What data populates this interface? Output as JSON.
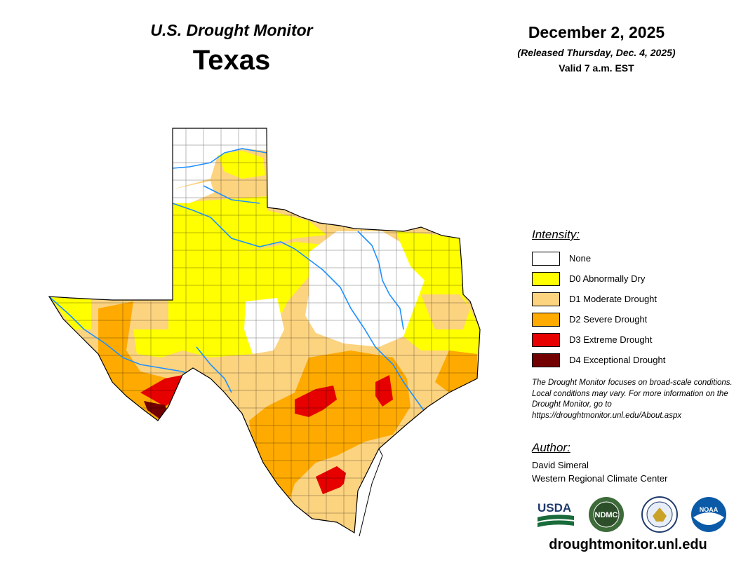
{
  "header": {
    "title": "U.S. Drought Monitor",
    "state": "Texas",
    "date": "December 2, 2025",
    "released": "(Released Thursday, Dec. 4, 2025)",
    "valid": "Valid 7 a.m. EST"
  },
  "legend": {
    "title": "Intensity:",
    "items": [
      {
        "label": "None",
        "color": "#ffffff"
      },
      {
        "label": "D0 Abnormally Dry",
        "color": "#ffff00"
      },
      {
        "label": "D1 Moderate Drought",
        "color": "#fcd37f"
      },
      {
        "label": "D2 Severe Drought",
        "color": "#ffaa00"
      },
      {
        "label": "D3 Extreme Drought",
        "color": "#e60000"
      },
      {
        "label": "D4 Exceptional Drought",
        "color": "#730000"
      }
    ]
  },
  "note": "The Drought Monitor focuses on broad-scale conditions. Local conditions may vary. For more information on the Drought Monitor, go to https://droughtmonitor.unl.edu/About.aspx",
  "author": {
    "title": "Author:",
    "name": "David Simeral",
    "org": "Western Regional Climate Center"
  },
  "logos": [
    {
      "name": "usda-logo",
      "text": "USDA"
    },
    {
      "name": "ndmc-logo",
      "text": "NDMC"
    },
    {
      "name": "commerce-seal",
      "text": ""
    },
    {
      "name": "noaa-logo",
      "text": "NOAA"
    }
  ],
  "website": "droughtmonitor.unl.edu"
}
